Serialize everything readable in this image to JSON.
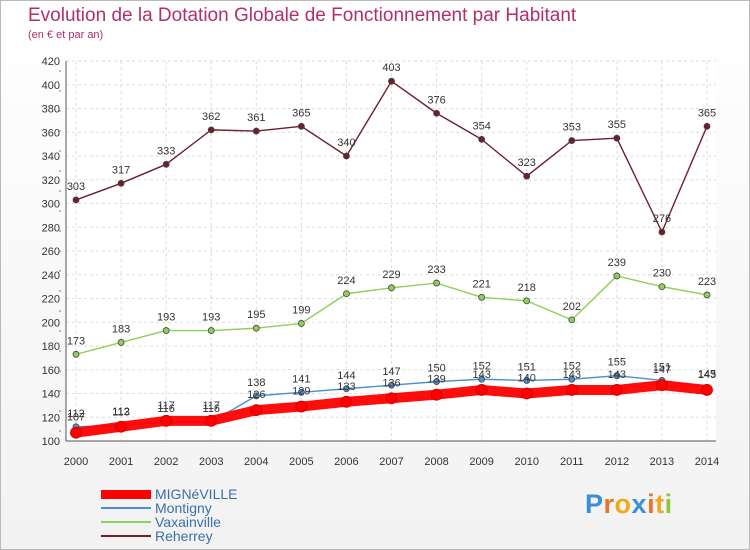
{
  "chart_data": {
    "type": "line",
    "title": "Evolution de la Dotation Globale de Fonctionnement par Habitant",
    "subtitle": "(en € et par an)",
    "x": [
      "2000",
      "2001",
      "2002",
      "2003",
      "2004",
      "2005",
      "2006",
      "2007",
      "2008",
      "2009",
      "2010",
      "2011",
      "2012",
      "2013",
      "2014"
    ],
    "ylim": [
      100,
      420
    ],
    "yticks": [
      100,
      120,
      140,
      160,
      180,
      200,
      220,
      240,
      260,
      280,
      300,
      320,
      340,
      360,
      380,
      400,
      420
    ],
    "grid": true,
    "legend_position": "bottom-left",
    "series": [
      {
        "name": "MIGNéVILLE",
        "color": "#ff0000",
        "values": [
          107,
          112,
          117,
          117,
          126,
          129,
          133,
          136,
          139,
          143,
          140,
          143,
          143,
          147,
          143
        ]
      },
      {
        "name": "Montigny",
        "color": "#4a8fd0",
        "values": [
          112,
          113,
          116,
          116,
          138,
          141,
          144,
          147,
          150,
          152,
          151,
          152,
          155,
          151,
          145
        ]
      },
      {
        "name": "Vaxainville",
        "color": "#8ed05a",
        "values": [
          173,
          183,
          193,
          193,
          195,
          199,
          224,
          229,
          233,
          221,
          218,
          202,
          239,
          230,
          223
        ]
      },
      {
        "name": "Reherrey",
        "color": "#6e1f2c",
        "values": [
          303,
          317,
          333,
          362,
          361,
          365,
          340,
          403,
          376,
          354,
          323,
          353,
          355,
          276,
          365
        ]
      }
    ]
  },
  "logo": {
    "text": "Proxiti",
    "letters": [
      "P",
      "r",
      "o",
      "x",
      "i",
      "t",
      "i"
    ],
    "colors": [
      "#3a8fd8",
      "#e8762a",
      "#f2a81d",
      "#3a8fd8",
      "#e8762a",
      "#f2a81d",
      "#8ec63f"
    ]
  }
}
